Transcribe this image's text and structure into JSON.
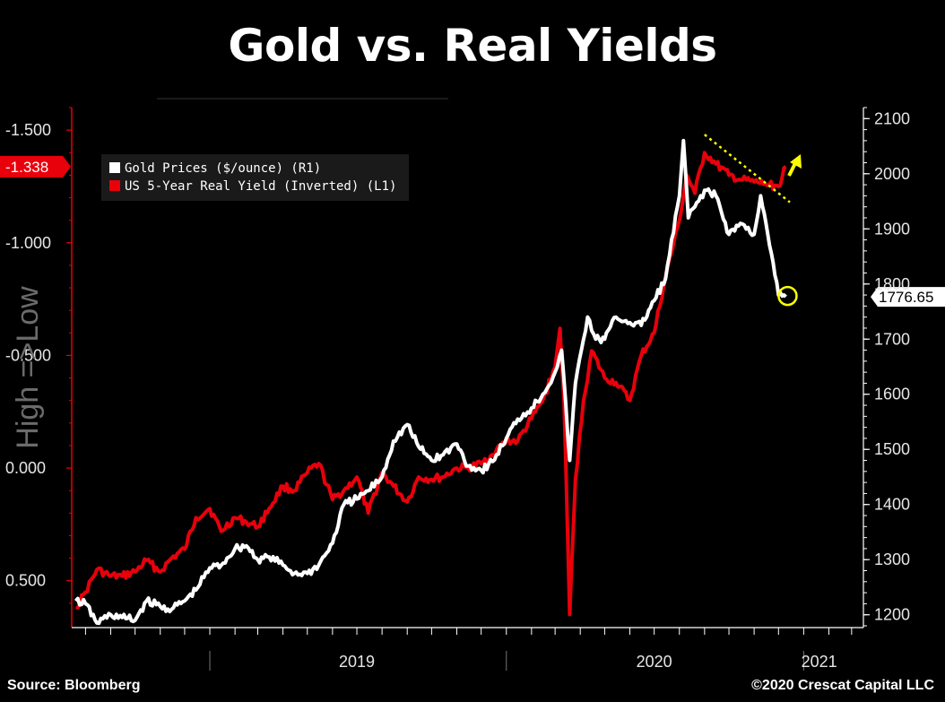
{
  "title": "Gold vs. Real Yields",
  "footer": {
    "source": "Source: Bloomberg",
    "copyright": "©2020 Crescat Capital LLC"
  },
  "chart_data": {
    "type": "line",
    "left_axis": {
      "label": "High =>Low",
      "inverted": true,
      "range": [
        0.7,
        -1.6
      ],
      "ticks": [
        -1.5,
        -1.0,
        -0.5,
        0.0,
        0.5
      ],
      "tick_labels": [
        "-1.500",
        "-1.000",
        "-0.500",
        "0.000",
        "0.500"
      ]
    },
    "right_axis": {
      "range": [
        1180,
        2120
      ],
      "ticks": [
        1200,
        1300,
        1400,
        1500,
        1600,
        1700,
        1800,
        1900,
        2000,
        2100
      ],
      "tick_labels": [
        "1200",
        "1300",
        "1400",
        "1500",
        "1600",
        "1700",
        "1800",
        "1900",
        "2000",
        "2100"
      ]
    },
    "x_axis": {
      "range": [
        "2018-07-15",
        "2021-03-10"
      ],
      "year_labels": [
        "2019",
        "2020",
        "2021"
      ],
      "year_dividers": [
        "2019-01-01",
        "2020-01-01",
        "2021-01-01"
      ]
    },
    "legend": {
      "placement": "top-left",
      "entries": [
        {
          "label": "Gold Prices ($/ounce) (R1)",
          "color": "#ffffff"
        },
        {
          "label": "US 5-Year Real Yield (Inverted) (L1)",
          "color": "#e8000b"
        }
      ]
    },
    "series": [
      {
        "name": "US 5-Year Real Yield (Inverted) (L1)",
        "axis": "left",
        "color": "#e8000b",
        "points": [
          [
            "2018-07-20",
            0.62
          ],
          [
            "2018-08-01",
            0.55
          ],
          [
            "2018-08-15",
            0.45
          ],
          [
            "2018-09-01",
            0.48
          ],
          [
            "2018-09-15",
            0.48
          ],
          [
            "2018-10-01",
            0.46
          ],
          [
            "2018-10-15",
            0.41
          ],
          [
            "2018-11-01",
            0.46
          ],
          [
            "2018-11-15",
            0.4
          ],
          [
            "2018-12-01",
            0.36
          ],
          [
            "2018-12-15",
            0.22
          ],
          [
            "2019-01-01",
            0.18
          ],
          [
            "2019-01-15",
            0.28
          ],
          [
            "2019-02-01",
            0.22
          ],
          [
            "2019-02-15",
            0.24
          ],
          [
            "2019-03-01",
            0.26
          ],
          [
            "2019-03-15",
            0.18
          ],
          [
            "2019-04-01",
            0.08
          ],
          [
            "2019-04-15",
            0.1
          ],
          [
            "2019-05-01",
            0.02
          ],
          [
            "2019-05-15",
            -0.02
          ],
          [
            "2019-06-01",
            0.14
          ],
          [
            "2019-06-15",
            0.1
          ],
          [
            "2019-07-01",
            0.04
          ],
          [
            "2019-07-15",
            0.2
          ],
          [
            "2019-08-01",
            0.02
          ],
          [
            "2019-08-15",
            0.08
          ],
          [
            "2019-09-01",
            0.15
          ],
          [
            "2019-09-15",
            0.04
          ],
          [
            "2019-10-01",
            0.05
          ],
          [
            "2019-10-15",
            0.04
          ],
          [
            "2019-11-01",
            0.0
          ],
          [
            "2019-11-15",
            0.0
          ],
          [
            "2019-12-01",
            -0.02
          ],
          [
            "2019-12-15",
            -0.06
          ],
          [
            "2020-01-01",
            -0.12
          ],
          [
            "2020-01-15",
            -0.12
          ],
          [
            "2020-02-01",
            -0.22
          ],
          [
            "2020-02-15",
            -0.3
          ],
          [
            "2020-03-01",
            -0.45
          ],
          [
            "2020-03-07",
            -0.62
          ],
          [
            "2020-03-12",
            -0.3
          ],
          [
            "2020-03-19",
            0.65
          ],
          [
            "2020-03-26",
            0.05
          ],
          [
            "2020-04-05",
            -0.3
          ],
          [
            "2020-04-15",
            -0.52
          ],
          [
            "2020-05-01",
            -0.4
          ],
          [
            "2020-05-15",
            -0.38
          ],
          [
            "2020-06-01",
            -0.3
          ],
          [
            "2020-06-15",
            -0.5
          ],
          [
            "2020-07-01",
            -0.6
          ],
          [
            "2020-07-15",
            -0.85
          ],
          [
            "2020-08-01",
            -1.1
          ],
          [
            "2020-08-10",
            -1.3
          ],
          [
            "2020-08-20",
            -1.22
          ],
          [
            "2020-09-01",
            -1.4
          ],
          [
            "2020-09-15",
            -1.35
          ],
          [
            "2020-10-01",
            -1.3
          ],
          [
            "2020-10-15",
            -1.28
          ],
          [
            "2020-11-01",
            -1.27
          ],
          [
            "2020-11-15",
            -1.26
          ],
          [
            "2020-12-01",
            -1.25
          ],
          [
            "2020-12-10",
            -1.338
          ]
        ]
      },
      {
        "name": "Gold Prices ($/ounce) (R1)",
        "axis": "right",
        "color": "#ffffff",
        "points": [
          [
            "2018-07-20",
            1225
          ],
          [
            "2018-08-01",
            1220
          ],
          [
            "2018-08-15",
            1185
          ],
          [
            "2018-09-01",
            1200
          ],
          [
            "2018-09-15",
            1195
          ],
          [
            "2018-10-01",
            1190
          ],
          [
            "2018-10-15",
            1225
          ],
          [
            "2018-11-01",
            1215
          ],
          [
            "2018-11-15",
            1210
          ],
          [
            "2018-12-01",
            1225
          ],
          [
            "2018-12-15",
            1245
          ],
          [
            "2019-01-01",
            1285
          ],
          [
            "2019-01-15",
            1290
          ],
          [
            "2019-02-01",
            1320
          ],
          [
            "2019-02-15",
            1325
          ],
          [
            "2019-03-01",
            1300
          ],
          [
            "2019-03-15",
            1305
          ],
          [
            "2019-04-01",
            1290
          ],
          [
            "2019-04-15",
            1275
          ],
          [
            "2019-05-01",
            1275
          ],
          [
            "2019-05-15",
            1290
          ],
          [
            "2019-06-01",
            1330
          ],
          [
            "2019-06-15",
            1400
          ],
          [
            "2019-07-01",
            1410
          ],
          [
            "2019-07-15",
            1425
          ],
          [
            "2019-08-01",
            1450
          ],
          [
            "2019-08-15",
            1515
          ],
          [
            "2019-09-01",
            1545
          ],
          [
            "2019-09-15",
            1505
          ],
          [
            "2019-10-01",
            1480
          ],
          [
            "2019-10-15",
            1490
          ],
          [
            "2019-11-01",
            1510
          ],
          [
            "2019-11-15",
            1470
          ],
          [
            "2019-12-01",
            1462
          ],
          [
            "2019-12-15",
            1478
          ],
          [
            "2020-01-01",
            1520
          ],
          [
            "2020-01-15",
            1555
          ],
          [
            "2020-02-01",
            1575
          ],
          [
            "2020-02-15",
            1600
          ],
          [
            "2020-03-01",
            1640
          ],
          [
            "2020-03-09",
            1680
          ],
          [
            "2020-03-19",
            1480
          ],
          [
            "2020-03-26",
            1620
          ],
          [
            "2020-04-10",
            1740
          ],
          [
            "2020-04-20",
            1700
          ],
          [
            "2020-05-01",
            1700
          ],
          [
            "2020-05-15",
            1740
          ],
          [
            "2020-06-01",
            1730
          ],
          [
            "2020-06-15",
            1725
          ],
          [
            "2020-07-01",
            1770
          ],
          [
            "2020-07-15",
            1810
          ],
          [
            "2020-08-01",
            1960
          ],
          [
            "2020-08-06",
            2060
          ],
          [
            "2020-08-12",
            1920
          ],
          [
            "2020-08-20",
            1940
          ],
          [
            "2020-09-01",
            1970
          ],
          [
            "2020-09-15",
            1960
          ],
          [
            "2020-10-01",
            1890
          ],
          [
            "2020-10-15",
            1910
          ],
          [
            "2020-11-01",
            1890
          ],
          [
            "2020-11-09",
            1960
          ],
          [
            "2020-11-20",
            1870
          ],
          [
            "2020-12-01",
            1780
          ],
          [
            "2020-12-10",
            1776.65
          ]
        ]
      }
    ],
    "annotations": [
      {
        "type": "value-tag",
        "axis": "left",
        "text": "-1.338",
        "value": -1.338,
        "color": "#e8000b"
      },
      {
        "type": "value-tag",
        "axis": "right",
        "text": "1776.65",
        "value": 1776.65,
        "color": "#ffffff"
      },
      {
        "type": "dotted-trendline",
        "color": "#ffff00",
        "from": [
          "2020-09-01",
          -1.48
        ],
        "to": [
          "2020-12-15",
          -1.18
        ]
      },
      {
        "type": "up-arrow",
        "color": "#ffff00"
      },
      {
        "type": "circle-marker",
        "color": "#ffff00",
        "at": [
          "2020-12-10",
          1776.65
        ]
      }
    ],
    "grid": false
  }
}
